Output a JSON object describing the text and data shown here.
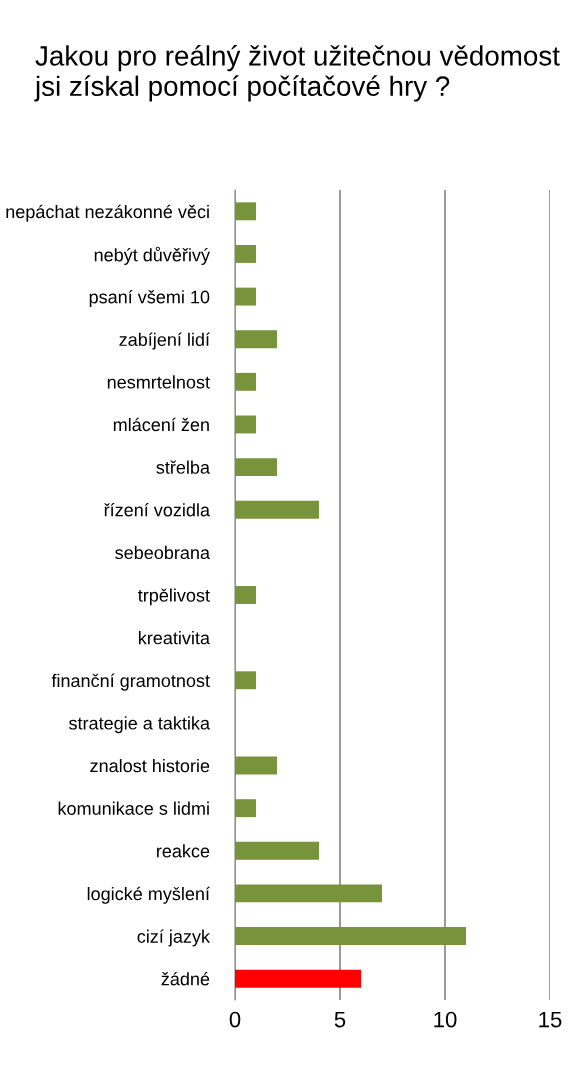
{
  "chart_data": {
    "type": "bar",
    "orientation": "horizontal",
    "title": "Jakou pro reálný život užitečnou vědomost jsi získal pomocí počítačové hry ?",
    "categories": [
      "nepáchat nezákonné věci",
      "nebýt důvěřivý",
      "psaní všemi 10",
      "zabíjení lidí",
      "nesmrtelnost",
      "mlácení žen",
      "střelba",
      "řízení vozidla",
      "sebeobrana",
      "trpělivost",
      "kreativita",
      "finanční gramotnost",
      "strategie a taktika",
      "znalost historie",
      "komunikace s lidmi",
      "reakce",
      "logické myšlení",
      "cizí jazyk",
      "žádné"
    ],
    "values": [
      1,
      1,
      1,
      2,
      1,
      1,
      2,
      4,
      0,
      1,
      0,
      1,
      0,
      2,
      1,
      4,
      7,
      11,
      6
    ],
    "colors": [
      "#77933c",
      "#77933c",
      "#77933c",
      "#77933c",
      "#77933c",
      "#77933c",
      "#77933c",
      "#77933c",
      "#77933c",
      "#77933c",
      "#77933c",
      "#77933c",
      "#77933c",
      "#77933c",
      "#77933c",
      "#77933c",
      "#77933c",
      "#77933c",
      "#ff0000"
    ],
    "xlim": [
      0,
      15
    ],
    "xticks": [
      0,
      5,
      10,
      15
    ],
    "grid": "x",
    "legend": false
  }
}
